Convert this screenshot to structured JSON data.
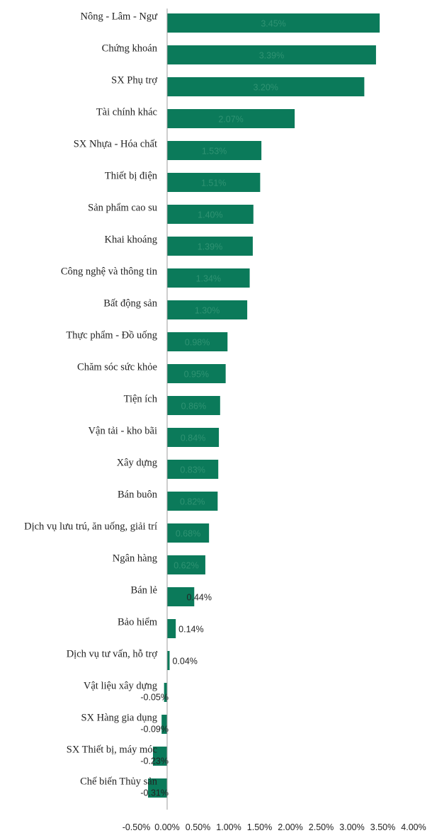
{
  "chart_data": {
    "type": "bar",
    "orientation": "horizontal",
    "title": "",
    "xlabel": "",
    "ylabel": "",
    "categories": [
      "Nông - Lâm - Ngư",
      "Chứng khoán",
      "SX Phụ trợ",
      "Tài chính khác",
      "SX Nhựa - Hóa chất",
      "Thiết bị điện",
      "Sản phẩm cao su",
      "Khai khoáng",
      "Công nghệ và thông tin",
      "Bất động sản",
      "Thực phẩm - Đồ uống",
      "Chăm sóc sức khỏe",
      "Tiện ích",
      "Vận tải - kho bãi",
      "Xây dựng",
      "Bán buôn",
      "Dịch vụ lưu trú, ăn uống, giải trí",
      "Ngân hàng",
      "Bán lẻ",
      "Bảo hiểm",
      "Dịch vụ tư vấn, hỗ trợ",
      "Vật liệu xây dựng",
      "SX Hàng gia dụng",
      "SX Thiết bị, máy móc",
      "Chế biến Thủy sản"
    ],
    "values": [
      3.45,
      3.39,
      3.2,
      2.07,
      1.53,
      1.51,
      1.4,
      1.39,
      1.34,
      1.3,
      0.98,
      0.95,
      0.86,
      0.84,
      0.83,
      0.82,
      0.68,
      0.62,
      0.44,
      0.14,
      0.04,
      -0.05,
      -0.09,
      -0.23,
      -0.31
    ],
    "value_labels": [
      "3.45%",
      "3.39%",
      "3.20%",
      "2.07%",
      "1.53%",
      "1.51%",
      "1.40%",
      "1.39%",
      "1.34%",
      "1.30%",
      "0.98%",
      "0.95%",
      "0.86%",
      "0.84%",
      "0.83%",
      "0.82%",
      "0.68%",
      "0.62%",
      "0.44%",
      "0.14%",
      "0.04%",
      "-0.05%",
      "-0.09%",
      "-0.23%",
      "-0.31%"
    ],
    "xlim": [
      -0.5,
      4.0
    ],
    "x_ticks": [
      "-0.50%",
      "0.00%",
      "0.50%",
      "1.00%",
      "1.50%",
      "2.00%",
      "2.50%",
      "3.00%",
      "3.50%",
      "4.00%"
    ],
    "unit": "%",
    "grid": false,
    "legend": "none",
    "colors": {
      "bar": "#0b7a5a",
      "label_on_bar": "#2f9272",
      "label_outside": "#222222",
      "axis": "#9e9e9e"
    }
  }
}
